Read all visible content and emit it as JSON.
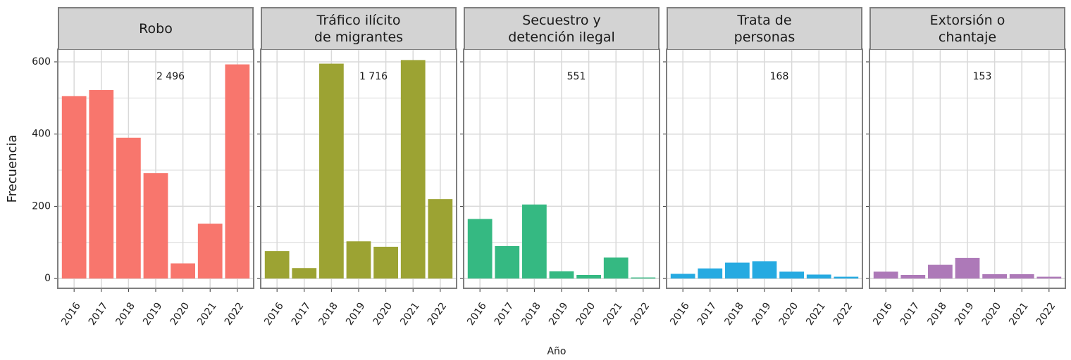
{
  "axis_labels": {
    "y": "Frecuencia",
    "x": "Año"
  },
  "chart_data": [
    {
      "type": "bar",
      "title": "Robo",
      "annotation": {
        "value": 2496,
        "label": "2 496"
      },
      "color": "#f8766d",
      "categories": [
        "2016",
        "2017",
        "2018",
        "2019",
        "2020",
        "2021",
        "2022"
      ],
      "values": [
        505,
        522,
        390,
        292,
        42,
        152,
        593
      ],
      "ylim": [
        -27,
        635
      ],
      "yticks": [
        0,
        200,
        400,
        600
      ],
      "minor_yticks": [
        100,
        300,
        500
      ],
      "grid": true
    },
    {
      "type": "bar",
      "title": "Tráfico ilícito\nde migrantes",
      "annotation": {
        "value": 1716,
        "label": "1 716"
      },
      "color": "#9ca333",
      "categories": [
        "2016",
        "2017",
        "2018",
        "2019",
        "2020",
        "2021",
        "2022"
      ],
      "values": [
        76,
        29,
        595,
        103,
        88,
        605,
        220
      ],
      "ylim": [
        -27,
        635
      ],
      "yticks": [
        0,
        200,
        400,
        600
      ],
      "minor_yticks": [
        100,
        300,
        500
      ],
      "grid": true
    },
    {
      "type": "bar",
      "title": "Secuestro y\ndetención ilegal",
      "annotation": {
        "value": 551,
        "label": "551"
      },
      "color": "#35b982",
      "categories": [
        "2016",
        "2017",
        "2018",
        "2019",
        "2020",
        "2021",
        "2022"
      ],
      "values": [
        165,
        90,
        205,
        20,
        10,
        58,
        3
      ],
      "ylim": [
        -27,
        635
      ],
      "yticks": [
        0,
        200,
        400,
        600
      ],
      "minor_yticks": [
        100,
        300,
        500
      ],
      "grid": true
    },
    {
      "type": "bar",
      "title": "Trata de\npersonas",
      "annotation": {
        "value": 168,
        "label": "168"
      },
      "color": "#26aae1",
      "categories": [
        "2016",
        "2017",
        "2018",
        "2019",
        "2020",
        "2021",
        "2022"
      ],
      "values": [
        13,
        28,
        44,
        48,
        19,
        11,
        5
      ],
      "ylim": [
        -27,
        635
      ],
      "yticks": [
        0,
        200,
        400,
        600
      ],
      "minor_yticks": [
        100,
        300,
        500
      ],
      "grid": true
    },
    {
      "type": "bar",
      "title": "Extorsión o\nchantaje",
      "annotation": {
        "value": 153,
        "label": "153"
      },
      "color": "#ad79b8",
      "categories": [
        "2016",
        "2017",
        "2018",
        "2019",
        "2020",
        "2021",
        "2022"
      ],
      "values": [
        19,
        10,
        38,
        57,
        12,
        12,
        5
      ],
      "ylim": [
        -27,
        635
      ],
      "yticks": [
        0,
        200,
        400,
        600
      ],
      "minor_yticks": [
        100,
        300,
        500
      ],
      "grid": true
    }
  ]
}
